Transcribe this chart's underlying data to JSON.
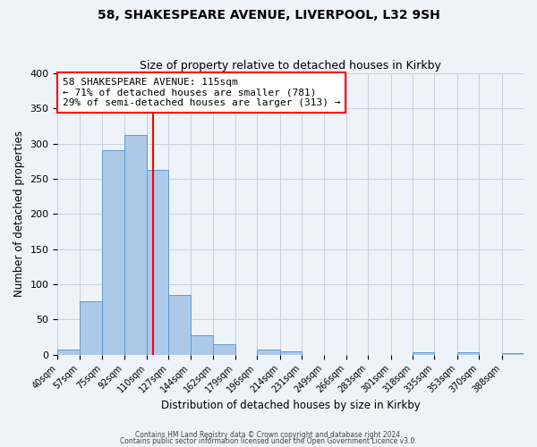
{
  "title1": "58, SHAKESPEARE AVENUE, LIVERPOOL, L32 9SH",
  "title2": "Size of property relative to detached houses in Kirkby",
  "xlabel": "Distribution of detached houses by size in Kirkby",
  "ylabel": "Number of detached properties",
  "bin_labels": [
    "40sqm",
    "57sqm",
    "75sqm",
    "92sqm",
    "110sqm",
    "127sqm",
    "144sqm",
    "162sqm",
    "179sqm",
    "196sqm",
    "214sqm",
    "231sqm",
    "249sqm",
    "266sqm",
    "283sqm",
    "301sqm",
    "318sqm",
    "335sqm",
    "353sqm",
    "370sqm",
    "388sqm"
  ],
  "bar_values": [
    8,
    76,
    291,
    313,
    263,
    85,
    28,
    15,
    0,
    8,
    5,
    0,
    0,
    0,
    0,
    0,
    3,
    0,
    3,
    0,
    2
  ],
  "bar_color": "#adc9e8",
  "bar_edge_color": "#5b9bd5",
  "vline_x": 115,
  "vline_color": "red",
  "annotation_line1": "58 SHAKESPEARE AVENUE: 115sqm",
  "annotation_line2": "← 71% of detached houses are smaller (781)",
  "annotation_line3": "29% of semi-detached houses are larger (313) →",
  "annotation_box_color": "white",
  "annotation_box_edge": "red",
  "ylim": [
    0,
    400
  ],
  "yticks": [
    0,
    50,
    100,
    150,
    200,
    250,
    300,
    350,
    400
  ],
  "bin_edges": [
    40,
    57,
    75,
    92,
    110,
    127,
    144,
    162,
    179,
    196,
    214,
    231,
    249,
    266,
    283,
    301,
    318,
    335,
    353,
    370,
    388,
    405
  ],
  "footer1": "Contains HM Land Registry data © Crown copyright and database right 2024.",
  "footer2": "Contains public sector information licensed under the Open Government Licence v3.0.",
  "background_color": "#eef2f9"
}
